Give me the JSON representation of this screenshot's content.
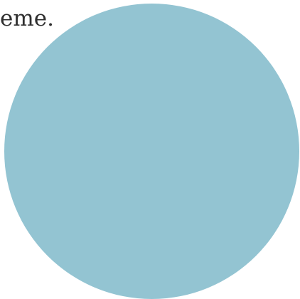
{
  "text": {
    "fragment": "eme."
  },
  "shape": {
    "icon": "circle-shape",
    "color": "#93c4d2"
  }
}
